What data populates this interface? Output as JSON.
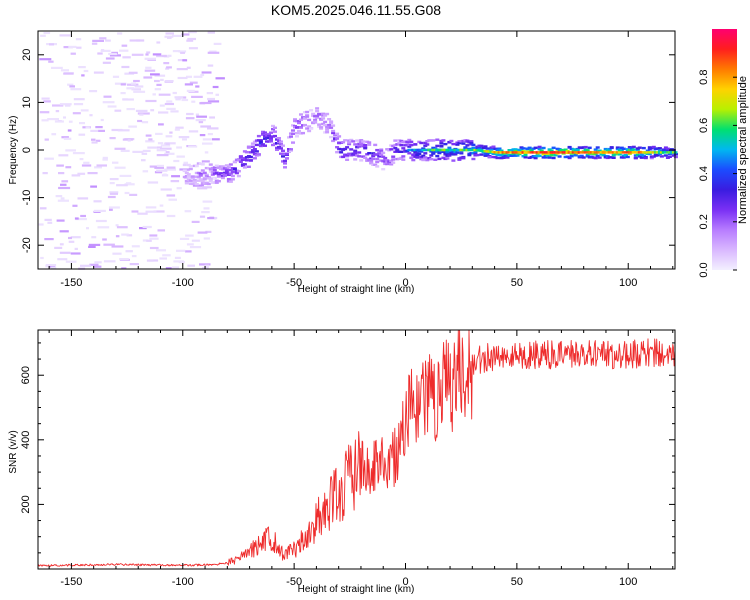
{
  "title": "KOM5.2025.046.11.55.G08",
  "colors": {
    "snr_line": "#ee2b2b",
    "colormap": [
      "#f3f0ff",
      "#d9b8ff",
      "#b77cff",
      "#7a30f4",
      "#3a1ce0",
      "#1b4cff",
      "#00b8f0",
      "#00e070",
      "#b8f000",
      "#ffd200",
      "#ff7a00",
      "#ff1e1e",
      "#ff0070"
    ]
  },
  "chart_data": [
    {
      "type": "heatmap",
      "title": "KOM5.2025.046.11.55.G08",
      "xlabel": "Height of straight line (km)",
      "ylabel": "Frequency (Hz)",
      "xlim": [
        -165,
        121
      ],
      "ylim": [
        -25,
        25
      ],
      "xticks": [
        -150,
        -100,
        -50,
        0,
        50,
        100
      ],
      "yticks": [
        -20,
        -10,
        0,
        10,
        20
      ],
      "colorbar": {
        "label": "Normalized spectral amplitude",
        "range": [
          0,
          1
        ],
        "ticks": [
          0.0,
          0.2,
          0.4,
          0.6,
          0.8
        ]
      },
      "signal_trace": {
        "x": [
          -100,
          -90,
          -80,
          -75,
          -70,
          -65,
          -60,
          -55,
          -50,
          -45,
          -40,
          -35,
          -30,
          -25,
          -20,
          -15,
          -10,
          -5,
          0,
          10,
          20,
          30,
          40,
          60,
          80,
          100,
          120
        ],
        "freq": [
          -5,
          -5,
          -5,
          -3,
          -1,
          2,
          3,
          -2,
          5,
          6,
          7,
          5,
          0,
          0,
          0,
          -1,
          -2,
          0,
          0,
          0,
          0,
          0,
          -0.5,
          -0.5,
          -0.5,
          -0.5,
          -0.5
        ],
        "amplitude": [
          0.12,
          0.18,
          0.25,
          0.3,
          0.3,
          0.35,
          0.3,
          0.3,
          0.22,
          0.2,
          0.18,
          0.15,
          0.32,
          0.3,
          0.3,
          0.3,
          0.25,
          0.3,
          0.35,
          0.45,
          0.48,
          0.5,
          0.65,
          0.8,
          0.7,
          0.75,
          0.45
        ]
      },
      "noise_region": {
        "x": [
          -165,
          -85
        ],
        "freq": [
          -25,
          25
        ],
        "amplitude": [
          0.02,
          0.15
        ]
      }
    },
    {
      "type": "line",
      "xlabel": "Height of straight line (km)",
      "ylabel": "SNR (v/v)",
      "xlim": [
        -165,
        121
      ],
      "ylim": [
        0,
        740
      ],
      "xticks": [
        -150,
        -100,
        -50,
        0,
        50,
        100
      ],
      "yticks": [
        200,
        400,
        600
      ],
      "series": [
        {
          "x": [
            -165,
            -150,
            -130,
            -110,
            -95,
            -85,
            -80,
            -75,
            -70,
            -65,
            -60,
            -55,
            -50,
            -45,
            -40,
            -35,
            -30,
            -25,
            -20,
            -15,
            -10,
            -5,
            0,
            5,
            10,
            15,
            20,
            25,
            30,
            35,
            40,
            50,
            60,
            70,
            80,
            90,
            100,
            110,
            121
          ],
          "values": [
            10,
            12,
            14,
            12,
            12,
            14,
            20,
            30,
            55,
            80,
            100,
            45,
            60,
            100,
            150,
            185,
            230,
            270,
            310,
            320,
            330,
            350,
            450,
            520,
            520,
            540,
            580,
            620,
            640,
            650,
            660,
            660,
            665,
            660,
            670,
            660,
            665,
            670,
            665
          ]
        }
      ]
    }
  ]
}
